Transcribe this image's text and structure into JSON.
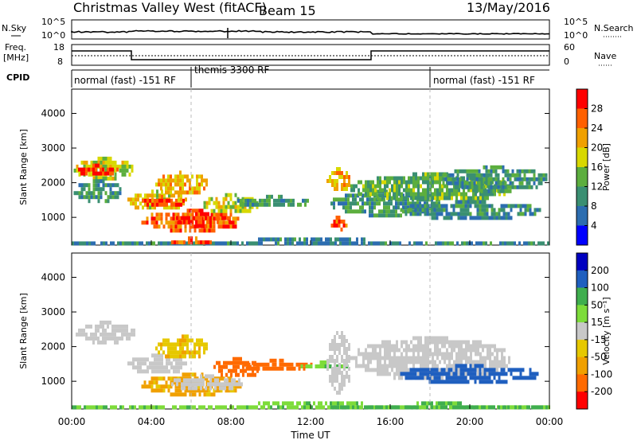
{
  "header": {
    "station": "Christmas Valley West (fitACF)",
    "beam": "Beam 15",
    "date": "13/May/2016"
  },
  "noise_panel": {
    "left_label": "N.Sky",
    "left_ticks": [
      "10^5",
      "10^0"
    ],
    "right_label": "N.Search",
    "right_ticks": [
      "10^5",
      "10^0"
    ]
  },
  "freq_panel": {
    "left_label_1": "Freq.",
    "left_label_2": "[MHz]",
    "left_ticks": [
      "18",
      "8"
    ],
    "right_label": "Nave",
    "right_ticks": [
      "60",
      "0"
    ]
  },
  "cpid": {
    "label": "CPID",
    "segments": [
      {
        "start_hour": 0,
        "end_hour": 6,
        "text": "normal (fast) -151 RF"
      },
      {
        "start_hour": 6,
        "end_hour": 18,
        "text": "themis 3300 RF"
      },
      {
        "start_hour": 18,
        "end_hour": 24,
        "text": "normal (fast) -151 RF"
      }
    ]
  },
  "colors": {
    "power_scale": [
      "#0000ff",
      "#2c6db0",
      "#3a8f72",
      "#5cae3e",
      "#d8d800",
      "#f0a000",
      "#ff6000",
      "#ff0000"
    ],
    "velocity_scale": [
      "#ff0000",
      "#ff6a00",
      "#f0a000",
      "#e6c800",
      "#c8c8c8",
      "#7ddc3a",
      "#3fae4e",
      "#1f5fbf",
      "#0000c0"
    ]
  },
  "chart_data": [
    {
      "type": "heatmap",
      "name": "power_panel",
      "ylabel": "Slant Range [km]",
      "xlabel": "Time UT",
      "xlim": [
        0,
        24
      ],
      "ylim": [
        200,
        4700
      ],
      "x_ticks": [
        "00:00",
        "04:00",
        "08:00",
        "12:00",
        "16:00",
        "20:00",
        "00:00"
      ],
      "y_ticks": [
        1000,
        2000,
        3000,
        4000
      ],
      "colorbar": {
        "label": "Power [dB]",
        "ticks": [
          "28",
          "24",
          "20",
          "16",
          "12",
          "8",
          "4"
        ],
        "range": [
          0,
          30
        ]
      },
      "regions": [
        {
          "t0": 0.1,
          "t1": 3.1,
          "r0": 2150,
          "r1": 2750,
          "value": 16
        },
        {
          "t0": 0.2,
          "t1": 2.3,
          "r0": 2250,
          "r1": 2550,
          "value": 27
        },
        {
          "t0": 0.1,
          "t1": 2.5,
          "r0": 1500,
          "r1": 2100,
          "value": 10
        },
        {
          "t0": 2.8,
          "t1": 5.7,
          "r0": 1250,
          "r1": 1800,
          "value": 18
        },
        {
          "t0": 3.4,
          "t1": 5.6,
          "r0": 1350,
          "r1": 1650,
          "value": 25
        },
        {
          "t0": 4.2,
          "t1": 6.8,
          "r0": 1700,
          "r1": 2350,
          "value": 20
        },
        {
          "t0": 3.5,
          "t1": 8.5,
          "r0": 650,
          "r1": 1250,
          "value": 24
        },
        {
          "t0": 5.0,
          "t1": 8.0,
          "r0": 800,
          "r1": 1150,
          "value": 28
        },
        {
          "t0": 6.5,
          "t1": 9.3,
          "r0": 1150,
          "r1": 1700,
          "value": 16
        },
        {
          "t0": 8.2,
          "t1": 12.0,
          "r0": 1350,
          "r1": 1650,
          "value": 10
        },
        {
          "t0": 12.8,
          "t1": 14.0,
          "r0": 1800,
          "r1": 2450,
          "value": 20
        },
        {
          "t0": 12.9,
          "t1": 13.8,
          "r0": 700,
          "r1": 1050,
          "value": 26
        },
        {
          "t0": 13.0,
          "t1": 18.5,
          "r0": 1100,
          "r1": 1800,
          "value": 10
        },
        {
          "t0": 14.0,
          "t1": 22.0,
          "r0": 1500,
          "r1": 2300,
          "value": 12
        },
        {
          "t0": 16.5,
          "t1": 23.5,
          "r0": 1000,
          "r1": 1500,
          "value": 9
        },
        {
          "t0": 18.5,
          "t1": 23.9,
          "r0": 1800,
          "r1": 2500,
          "value": 10
        },
        {
          "t0": 0.0,
          "t1": 24.0,
          "r0": 220,
          "r1": 420,
          "value": 8
        },
        {
          "t0": 5.0,
          "t1": 7.0,
          "r0": 250,
          "r1": 450,
          "value": 24
        }
      ]
    },
    {
      "type": "heatmap",
      "name": "velocity_panel",
      "ylabel": "Slant Range [km]",
      "xlabel": "Time UT",
      "xlim": [
        0,
        24
      ],
      "ylim": [
        200,
        4700
      ],
      "x_ticks": [
        "00:00",
        "04:00",
        "08:00",
        "12:00",
        "16:00",
        "20:00",
        "00:00"
      ],
      "y_ticks": [
        1000,
        2000,
        3000,
        4000
      ],
      "colorbar": {
        "label": "Velocity [m s⁻¹]",
        "ticks": [
          "200",
          "100",
          "50",
          "15",
          "-15",
          "-50",
          "-100",
          "-200"
        ],
        "range": [
          -250,
          250
        ]
      },
      "regions": [
        {
          "t0": 0.2,
          "t1": 3.1,
          "r0": 2150,
          "r1": 2750,
          "value": 0
        },
        {
          "t0": 2.8,
          "t1": 5.7,
          "r0": 1250,
          "r1": 1800,
          "value": 0
        },
        {
          "t0": 4.2,
          "t1": 6.8,
          "r0": 1700,
          "r1": 2350,
          "value": -40
        },
        {
          "t0": 3.5,
          "t1": 8.5,
          "r0": 650,
          "r1": 1250,
          "value": -60
        },
        {
          "t0": 5.0,
          "t1": 8.5,
          "r0": 800,
          "r1": 1200,
          "value": 0
        },
        {
          "t0": 7.0,
          "t1": 9.5,
          "r0": 1150,
          "r1": 1700,
          "value": -180
        },
        {
          "t0": 8.5,
          "t1": 12.0,
          "r0": 1350,
          "r1": 1650,
          "value": -120
        },
        {
          "t0": 11.5,
          "t1": 13.8,
          "r0": 1400,
          "r1": 1600,
          "value": 40
        },
        {
          "t0": 12.8,
          "t1": 14.0,
          "r0": 700,
          "r1": 2450,
          "value": 0
        },
        {
          "t0": 14.0,
          "t1": 22.0,
          "r0": 1100,
          "r1": 2300,
          "value": 0
        },
        {
          "t0": 16.5,
          "t1": 23.5,
          "r0": 1000,
          "r1": 1500,
          "value": 120
        },
        {
          "t0": 0.0,
          "t1": 24.0,
          "r0": 220,
          "r1": 420,
          "value": 40
        },
        {
          "t0": 13.0,
          "t1": 24.0,
          "r0": 220,
          "r1": 420,
          "value": 60
        }
      ]
    }
  ]
}
